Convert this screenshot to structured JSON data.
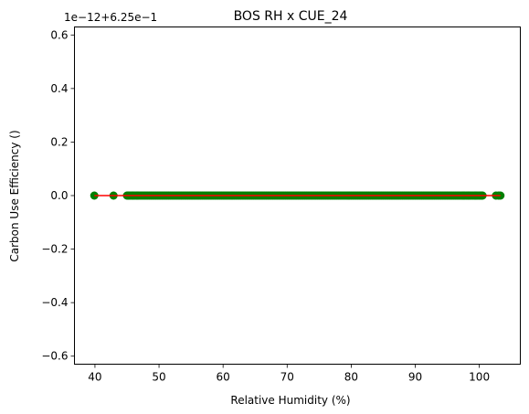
{
  "chart_data": {
    "type": "scatter",
    "title": "BOS RH x CUE_24",
    "xlabel": "Relative Humidity (%)",
    "ylabel": "Carbon Use Efficiency ()",
    "offset_text": "1e−12+6.25e−1",
    "xlim": [
      36.8,
      106.4
    ],
    "ylim": [
      -0.63,
      0.63
    ],
    "x_ticks": [
      40,
      50,
      60,
      70,
      80,
      90,
      100
    ],
    "x_tick_labels": [
      "40",
      "50",
      "60",
      "70",
      "80",
      "90",
      "100"
    ],
    "y_ticks": [
      -0.6,
      -0.4,
      -0.2,
      0.0,
      0.2,
      0.4,
      0.6
    ],
    "y_tick_labels": [
      "−0.6",
      "−0.4",
      "−0.2",
      "0.0",
      "0.2",
      "0.4",
      "0.6"
    ],
    "grid": false,
    "legend": "none",
    "series": [
      {
        "marker_color": "#007f00",
        "x_dense_range": [
          45,
          100.5
        ],
        "x_outliers": [
          39.9,
          42.9,
          45.2,
          45.9,
          46.6,
          97.5,
          98.3,
          99.4,
          100.3,
          102.6,
          103.0,
          103.3
        ],
        "y": 0.0
      }
    ],
    "trend_line": {
      "color": "#ff0000",
      "x": [
        39.9,
        103.3
      ],
      "y": [
        0.0,
        0.0
      ]
    }
  }
}
